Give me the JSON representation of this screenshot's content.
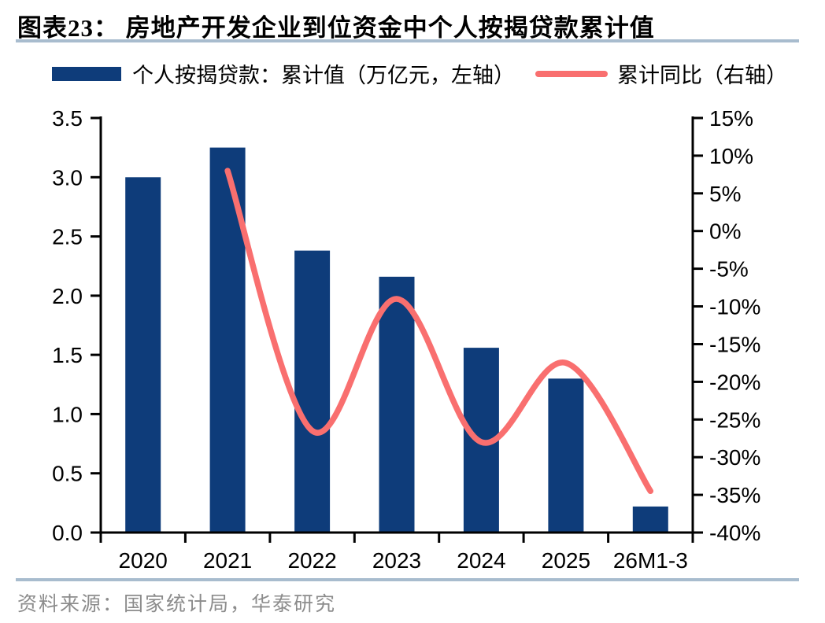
{
  "header": {
    "title": "图表23： 房地产开发企业到位资金中个人按揭贷款累计值"
  },
  "legend": {
    "items": [
      {
        "marker": "bar-swatch",
        "label": "个人按揭贷款：累计值（万亿元，左轴）",
        "color": "#0E3C7A"
      },
      {
        "marker": "line-swatch",
        "label": "累计同比（右轴）",
        "color": "#F96F6F"
      }
    ]
  },
  "chart_data": {
    "type": "combo",
    "categories": [
      "2020",
      "2021",
      "2022",
      "2023",
      "2024",
      "2025",
      "26M1-3"
    ],
    "series": [
      {
        "name": "个人按揭贷款：累计值（万亿元，左轴）",
        "type": "bar",
        "axis": "left",
        "color": "#0E3C7A",
        "values": [
          3.0,
          3.25,
          2.38,
          2.16,
          1.56,
          1.3,
          0.22
        ]
      },
      {
        "name": "累计同比（右轴）",
        "type": "line",
        "axis": "right",
        "color": "#F96F6F",
        "values": [
          null,
          8,
          -26.5,
          -9,
          -28,
          -17.5,
          -34.5
        ]
      }
    ],
    "left_axis": {
      "min": 0,
      "max": 3.5,
      "step": 0.5,
      "tick_labels": [
        "3.5",
        "3.0",
        "2.5",
        "2.0",
        "1.5",
        "1.0",
        "0.5",
        "0.0"
      ]
    },
    "right_axis": {
      "min": -40,
      "max": 15,
      "step": 5,
      "tick_labels": [
        "15%",
        "10%",
        "5%",
        "0%",
        "-5%",
        "-10%",
        "-15%",
        "-20%",
        "-25%",
        "-30%",
        "-35%",
        "-40%"
      ]
    },
    "grid": false,
    "legend_position": "top"
  },
  "colors": {
    "divider": "#A8BCCE",
    "axis": "#000000",
    "bar": "#0E3C7A",
    "line": "#F96F6F"
  },
  "footer": {
    "source": "资料来源：国家统计局，华泰研究"
  }
}
